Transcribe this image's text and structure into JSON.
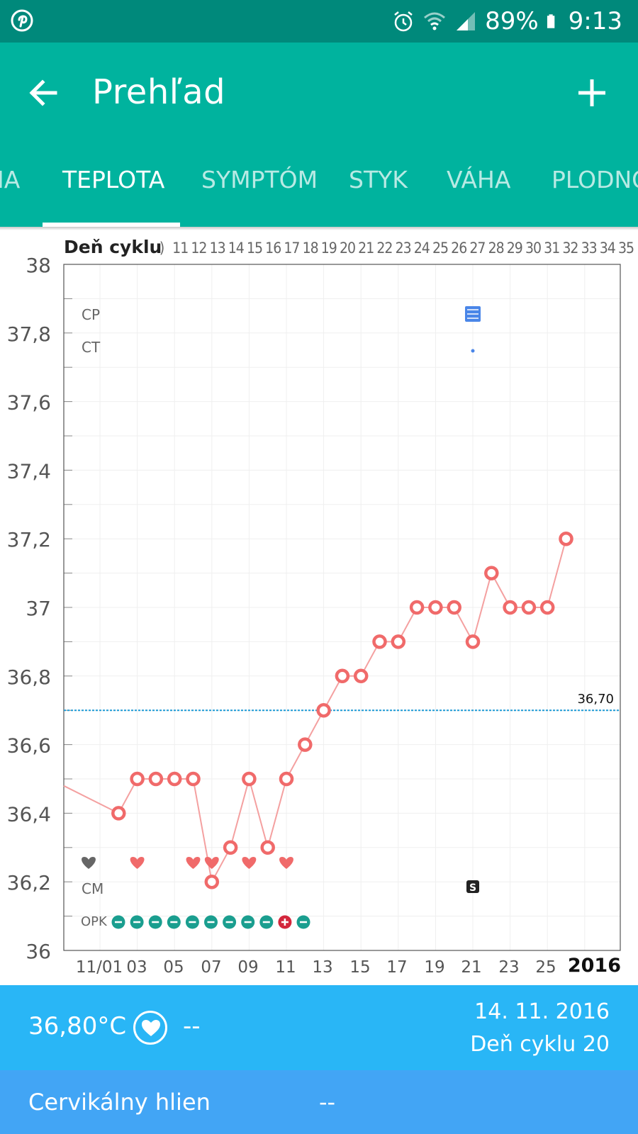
{
  "status_bar": {
    "left_icon": "pinterest-icon",
    "alarm_icon": "alarm-icon",
    "wifi_icon": "wifi-icon",
    "signal_icon": "signal-icon",
    "battery": "89%",
    "battery_icon": "battery-icon",
    "time": "9:13"
  },
  "app_bar": {
    "title": "Prehľad",
    "back_icon": "arrow-back-icon",
    "add_icon": "plus-icon"
  },
  "tabs": [
    {
      "label": "IA"
    },
    {
      "label": "TEPLOTA",
      "active": true
    },
    {
      "label": "SYMPTÓM"
    },
    {
      "label": "STYK"
    },
    {
      "label": "VÁHA"
    },
    {
      "label": "PLODNO"
    }
  ],
  "chart_data": {
    "type": "line",
    "cycle_header": "Deň cyklu",
    "cycle_days": [
      ")",
      "11",
      "12",
      "13",
      "14",
      "15",
      "16",
      "17",
      "18",
      "19",
      "20",
      "21",
      "22",
      "23",
      "24",
      "25",
      "26",
      "27",
      "28",
      "29",
      "30",
      "31",
      "32",
      "33",
      "34",
      "35"
    ],
    "ylim": [
      36,
      38
    ],
    "yticks": [
      "36",
      "36,2",
      "36,4",
      "36,6",
      "36,8",
      "37",
      "37,2",
      "37,4",
      "37,6",
      "37,8",
      "38"
    ],
    "x_labels": [
      "11/01",
      "03",
      "05",
      "07",
      "09",
      "11",
      "13",
      "15",
      "17",
      "19",
      "21",
      "23",
      "25"
    ],
    "year_label": "2016",
    "coverline_value": 36.7,
    "coverline_label": "36,70",
    "grid": true,
    "series": [
      {
        "color": "#f06a6a",
        "values": [
          {
            "x": -1,
            "y": 36.48
          },
          {
            "x": 2,
            "y": 36.4
          },
          {
            "x": 3,
            "y": 36.5
          },
          {
            "x": 4,
            "y": 36.5
          },
          {
            "x": 5,
            "y": 36.5
          },
          {
            "x": 6,
            "y": 36.5
          },
          {
            "x": 7,
            "y": 36.2
          },
          {
            "x": 8,
            "y": 36.3
          },
          {
            "x": 9,
            "y": 36.5
          },
          {
            "x": 10,
            "y": 36.3
          },
          {
            "x": 11,
            "y": 36.5
          },
          {
            "x": 12,
            "y": 36.6
          },
          {
            "x": 13,
            "y": 36.7
          },
          {
            "x": 14,
            "y": 36.8
          },
          {
            "x": 15,
            "y": 36.8
          },
          {
            "x": 16,
            "y": 36.9
          },
          {
            "x": 17,
            "y": 36.9
          },
          {
            "x": 18,
            "y": 37.0
          },
          {
            "x": 19,
            "y": 37.0
          },
          {
            "x": 20,
            "y": 37.0
          },
          {
            "x": 21,
            "y": 36.9
          },
          {
            "x": 22,
            "y": 37.1
          },
          {
            "x": 23,
            "y": 37.0
          },
          {
            "x": 24,
            "y": 37.0
          },
          {
            "x": 25,
            "y": 37.0
          },
          {
            "x": 26,
            "y": 37.2
          }
        ]
      }
    ],
    "row_labels": {
      "cp": "CP",
      "ct": "CT",
      "cm": "CM",
      "opk": "OPK"
    },
    "cp_markers": [
      {
        "x": 21,
        "icon": "list-icon",
        "color": "#4a86e8"
      }
    ],
    "ct_markers": [
      {
        "x": 21,
        "icon": "dot-icon",
        "color": "#4a86e8"
      }
    ],
    "intercourse_markers": [
      {
        "x": 0,
        "color": "#666666"
      },
      {
        "x": 3,
        "color": "#f06a6a"
      },
      {
        "x": 6,
        "color": "#f06a6a"
      },
      {
        "x": 7,
        "color": "#f06a6a"
      },
      {
        "x": 9,
        "color": "#f06a6a"
      },
      {
        "x": 11,
        "color": "#f06a6a"
      }
    ],
    "cm_markers": [
      {
        "x": 21,
        "label": "S"
      }
    ],
    "opk_markers": [
      {
        "x": 2,
        "result": "negative"
      },
      {
        "x": 3,
        "result": "negative"
      },
      {
        "x": 4,
        "result": "negative"
      },
      {
        "x": 5,
        "result": "negative"
      },
      {
        "x": 6,
        "result": "negative"
      },
      {
        "x": 7,
        "result": "negative"
      },
      {
        "x": 8,
        "result": "negative"
      },
      {
        "x": 9,
        "result": "negative"
      },
      {
        "x": 10,
        "result": "negative"
      },
      {
        "x": 11,
        "result": "positive"
      },
      {
        "x": 12,
        "result": "negative"
      }
    ],
    "colors": {
      "negative": "#1a9e8f",
      "positive": "#d3263c"
    }
  },
  "info": {
    "temperature": "36,80°C",
    "heart_icon": "heart-icon",
    "intercourse_value": "--",
    "date": "14. 11. 2016",
    "cycle_day": "Deň cyklu 20"
  },
  "mucus": {
    "label": "Cervikálny hlien",
    "value": "--"
  }
}
